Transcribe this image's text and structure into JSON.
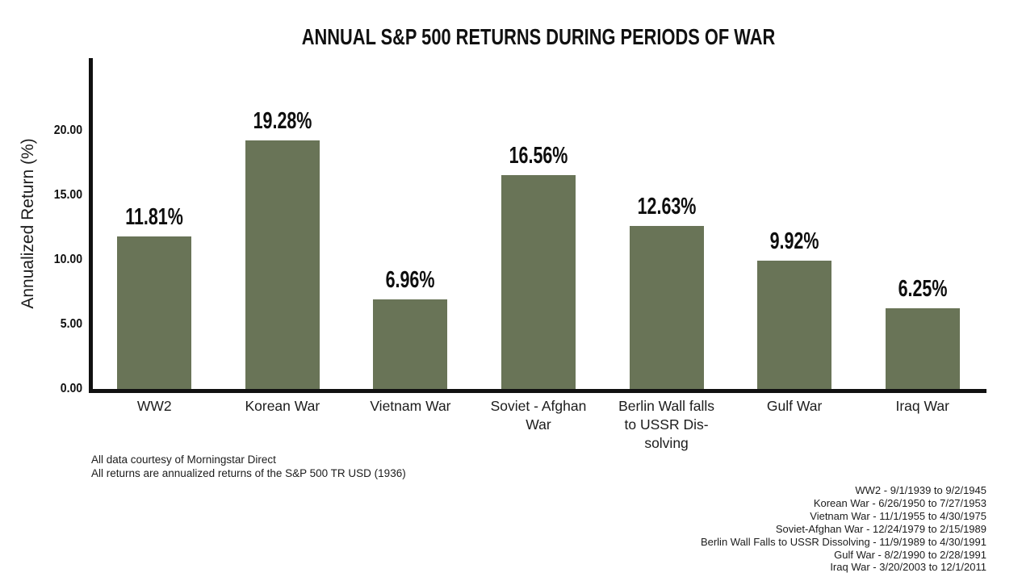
{
  "title": "ANNUAL S&P 500 RETURNS DURING PERIODS OF WAR",
  "y_axis": {
    "label": "Annualized Return (%)",
    "tick_labels": [
      "0.00",
      "5.00",
      "10.00",
      "15.00",
      "20.00"
    ],
    "tick_values": [
      0,
      5,
      10,
      15,
      20
    ]
  },
  "chart_data": {
    "type": "bar",
    "title": "ANNUAL S&P 500 RETURNS DURING PERIODS OF WAR",
    "xlabel": "",
    "ylabel": "Annualized Return (%)",
    "categories": [
      "WW2",
      "Korean War",
      "Vietnam War",
      "Soviet - Afghan\nWar",
      "Berlin Wall falls\nto USSR Dis-\nsolving",
      "Gulf War",
      "Iraq War"
    ],
    "values": [
      11.81,
      19.28,
      6.96,
      16.56,
      12.63,
      9.92,
      6.25
    ],
    "value_labels": [
      "11.81%",
      "19.28%",
      "6.96%",
      "16.56%",
      "12.63%",
      "9.92%",
      "6.25%"
    ],
    "yticks": [
      0,
      5,
      10,
      15,
      20
    ],
    "ylim": [
      0,
      25.6
    ],
    "grid": false,
    "legend_position": "none",
    "bar_color": "#697457",
    "axis_color": "#111111",
    "background_color": "#ffffff"
  },
  "footnotes_left": [
    "All data courtesy of Morningstar Direct",
    "All returns are annualized returns of the S&P 500 TR USD (1936)"
  ],
  "footnotes_right": [
    "WW2 - 9/1/1939 to 9/2/1945",
    "Korean War - 6/26/1950 to 7/27/1953",
    "Vietnam War - 11/1/1955 to 4/30/1975",
    "Soviet-Afghan War - 12/24/1979 to 2/15/1989",
    "Berlin Wall Falls to USSR Dissolving - 11/9/1989 to 4/30/1991",
    "Gulf War - 8/2/1990 to 2/28/1991",
    "Iraq War - 3/20/2003 to 12/1/2011"
  ]
}
